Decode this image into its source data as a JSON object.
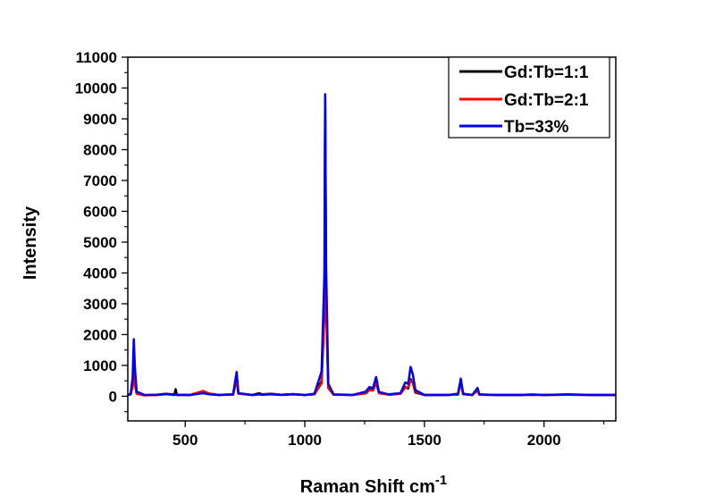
{
  "chart_data": {
    "type": "line",
    "title": "",
    "xlabel": "Raman Shift cm",
    "xlabel_superscript": "-1",
    "ylabel": "Intensity",
    "xlim": [
      260,
      2300
    ],
    "ylim": [
      -800,
      11000
    ],
    "x_ticks": [
      500,
      1000,
      1500,
      2000
    ],
    "y_ticks": [
      0,
      1000,
      2000,
      3000,
      4000,
      5000,
      6000,
      7000,
      8000,
      9000,
      10000,
      11000
    ],
    "x_tick_labels": [
      "500",
      "1000",
      "1500",
      "2000"
    ],
    "y_tick_labels": [
      "0",
      "1000",
      "2000",
      "3000",
      "4000",
      "5000",
      "6000",
      "7000",
      "8000",
      "9000",
      "10000",
      "11000"
    ],
    "grid": false,
    "legend_position": "top-right",
    "series": [
      {
        "name": "Gd:Tb=1:1",
        "color": "#000000",
        "points": [
          [
            262,
            40
          ],
          [
            272,
            60
          ],
          [
            280,
            350
          ],
          [
            285,
            900
          ],
          [
            290,
            400
          ],
          [
            297,
            80
          ],
          [
            330,
            30
          ],
          [
            380,
            40
          ],
          [
            420,
            70
          ],
          [
            455,
            60
          ],
          [
            460,
            230
          ],
          [
            465,
            50
          ],
          [
            520,
            40
          ],
          [
            575,
            140
          ],
          [
            600,
            80
          ],
          [
            640,
            40
          ],
          [
            700,
            60
          ],
          [
            715,
            650
          ],
          [
            722,
            90
          ],
          [
            780,
            40
          ],
          [
            810,
            100
          ],
          [
            820,
            60
          ],
          [
            860,
            80
          ],
          [
            900,
            50
          ],
          [
            950,
            70
          ],
          [
            1000,
            40
          ],
          [
            1040,
            60
          ],
          [
            1070,
            500
          ],
          [
            1082,
            3000
          ],
          [
            1085,
            9600
          ],
          [
            1089,
            3200
          ],
          [
            1098,
            300
          ],
          [
            1120,
            50
          ],
          [
            1200,
            40
          ],
          [
            1255,
            120
          ],
          [
            1270,
            240
          ],
          [
            1285,
            220
          ],
          [
            1298,
            520
          ],
          [
            1310,
            120
          ],
          [
            1350,
            50
          ],
          [
            1400,
            80
          ],
          [
            1420,
            300
          ],
          [
            1432,
            250
          ],
          [
            1442,
            560
          ],
          [
            1452,
            430
          ],
          [
            1462,
            120
          ],
          [
            1500,
            40
          ],
          [
            1600,
            40
          ],
          [
            1640,
            60
          ],
          [
            1652,
            480
          ],
          [
            1662,
            70
          ],
          [
            1700,
            40
          ],
          [
            1722,
            200
          ],
          [
            1730,
            50
          ],
          [
            1800,
            40
          ],
          [
            1900,
            40
          ],
          [
            1950,
            50
          ],
          [
            2000,
            40
          ],
          [
            2100,
            50
          ],
          [
            2200,
            40
          ],
          [
            2298,
            40
          ]
        ]
      },
      {
        "name": "Gd:Tb=2:1",
        "color": "#ff0000",
        "points": [
          [
            262,
            50
          ],
          [
            272,
            80
          ],
          [
            280,
            300
          ],
          [
            285,
            800
          ],
          [
            290,
            400
          ],
          [
            297,
            80
          ],
          [
            330,
            30
          ],
          [
            380,
            40
          ],
          [
            420,
            60
          ],
          [
            455,
            40
          ],
          [
            460,
            60
          ],
          [
            465,
            40
          ],
          [
            520,
            40
          ],
          [
            575,
            170
          ],
          [
            600,
            90
          ],
          [
            640,
            40
          ],
          [
            700,
            50
          ],
          [
            715,
            520
          ],
          [
            722,
            80
          ],
          [
            780,
            40
          ],
          [
            810,
            60
          ],
          [
            820,
            50
          ],
          [
            860,
            70
          ],
          [
            900,
            50
          ],
          [
            950,
            60
          ],
          [
            1000,
            40
          ],
          [
            1040,
            60
          ],
          [
            1070,
            420
          ],
          [
            1082,
            2600
          ],
          [
            1085,
            9100
          ],
          [
            1089,
            2800
          ],
          [
            1098,
            260
          ],
          [
            1120,
            50
          ],
          [
            1200,
            40
          ],
          [
            1255,
            90
          ],
          [
            1270,
            200
          ],
          [
            1285,
            180
          ],
          [
            1298,
            420
          ],
          [
            1310,
            100
          ],
          [
            1350,
            50
          ],
          [
            1400,
            80
          ],
          [
            1420,
            280
          ],
          [
            1432,
            300
          ],
          [
            1442,
            520
          ],
          [
            1452,
            470
          ],
          [
            1462,
            150
          ],
          [
            1500,
            40
          ],
          [
            1600,
            40
          ],
          [
            1640,
            50
          ],
          [
            1652,
            460
          ],
          [
            1662,
            60
          ],
          [
            1700,
            40
          ],
          [
            1722,
            180
          ],
          [
            1730,
            50
          ],
          [
            1800,
            40
          ],
          [
            1900,
            40
          ],
          [
            1950,
            60
          ],
          [
            2000,
            40
          ],
          [
            2100,
            50
          ],
          [
            2200,
            40
          ],
          [
            2298,
            40
          ]
        ]
      },
      {
        "name": "Tb=33%",
        "color": "#0000ee",
        "points": [
          [
            262,
            40
          ],
          [
            272,
            80
          ],
          [
            280,
            600
          ],
          [
            285,
            1850
          ],
          [
            290,
            900
          ],
          [
            297,
            150
          ],
          [
            330,
            40
          ],
          [
            380,
            50
          ],
          [
            420,
            80
          ],
          [
            455,
            50
          ],
          [
            460,
            50
          ],
          [
            465,
            40
          ],
          [
            520,
            40
          ],
          [
            575,
            100
          ],
          [
            600,
            60
          ],
          [
            640,
            40
          ],
          [
            700,
            60
          ],
          [
            715,
            790
          ],
          [
            722,
            100
          ],
          [
            780,
            40
          ],
          [
            810,
            60
          ],
          [
            820,
            50
          ],
          [
            860,
            60
          ],
          [
            900,
            40
          ],
          [
            950,
            60
          ],
          [
            1000,
            40
          ],
          [
            1040,
            80
          ],
          [
            1070,
            800
          ],
          [
            1082,
            4000
          ],
          [
            1085,
            9800
          ],
          [
            1089,
            4200
          ],
          [
            1098,
            400
          ],
          [
            1120,
            60
          ],
          [
            1200,
            40
          ],
          [
            1255,
            150
          ],
          [
            1270,
            300
          ],
          [
            1285,
            260
          ],
          [
            1298,
            620
          ],
          [
            1310,
            140
          ],
          [
            1350,
            60
          ],
          [
            1400,
            100
          ],
          [
            1420,
            450
          ],
          [
            1432,
            400
          ],
          [
            1442,
            950
          ],
          [
            1452,
            700
          ],
          [
            1462,
            200
          ],
          [
            1500,
            40
          ],
          [
            1600,
            40
          ],
          [
            1640,
            80
          ],
          [
            1652,
            570
          ],
          [
            1662,
            80
          ],
          [
            1700,
            40
          ],
          [
            1722,
            270
          ],
          [
            1730,
            60
          ],
          [
            1800,
            40
          ],
          [
            1900,
            40
          ],
          [
            1950,
            50
          ],
          [
            2000,
            40
          ],
          [
            2100,
            60
          ],
          [
            2200,
            40
          ],
          [
            2298,
            40
          ]
        ]
      }
    ]
  }
}
